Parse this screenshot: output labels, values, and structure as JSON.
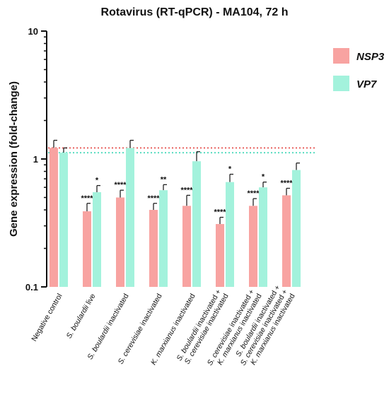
{
  "chart_data": {
    "type": "bar",
    "title": "Rotavirus (RT-qPCR) - MA104, 72 h",
    "ylabel": "Gene expression (fold-change)",
    "xlabel": "",
    "yscale": "log",
    "ylim": [
      0.1,
      10
    ],
    "yticks": [
      {
        "value": 0.1,
        "label": "0.1"
      },
      {
        "value": 1,
        "label": "1"
      },
      {
        "value": 10,
        "label": "10"
      }
    ],
    "categories": [
      [
        "Negative control"
      ],
      [
        "S. boulardii live"
      ],
      [
        "S. boulardii inactivated"
      ],
      [
        "S. cerevisiae inactivated"
      ],
      [
        "K. marxianus inactivated"
      ],
      [
        "S. boulardii inactivated +",
        "S. cerevisiae inactivated"
      ],
      [
        "S. cerevisiae inactivated +",
        "K. marxianus inactivated"
      ],
      [
        "S. boulardii inactivated +",
        "S. cerevisiae inactivated +",
        "K. marxianus inactivated"
      ]
    ],
    "series": [
      {
        "name": "NSP3",
        "color": "#f8a3a1",
        "values": [
          1.22,
          0.39,
          0.5,
          0.4,
          0.43,
          0.31,
          0.43,
          0.52
        ],
        "errors": [
          1.4,
          0.45,
          0.57,
          0.45,
          0.52,
          0.35,
          0.49,
          0.59
        ],
        "significance": [
          "",
          "****",
          "****",
          "****",
          "****",
          "****",
          "****",
          "****"
        ]
      },
      {
        "name": "VP7",
        "color": "#a3f2dc",
        "values": [
          1.12,
          0.55,
          1.22,
          0.57,
          0.96,
          0.66,
          0.6,
          0.82
        ],
        "errors": [
          1.22,
          0.62,
          1.4,
          0.63,
          1.14,
          0.76,
          0.66,
          0.93
        ],
        "significance": [
          "",
          "*",
          "",
          "**",
          "",
          "*",
          "*",
          ""
        ]
      }
    ],
    "reference_lines": [
      {
        "value": 1.22,
        "color": "#e8605e"
      },
      {
        "value": 1.12,
        "color": "#58dcc0"
      }
    ],
    "legend_position": "top-right"
  }
}
